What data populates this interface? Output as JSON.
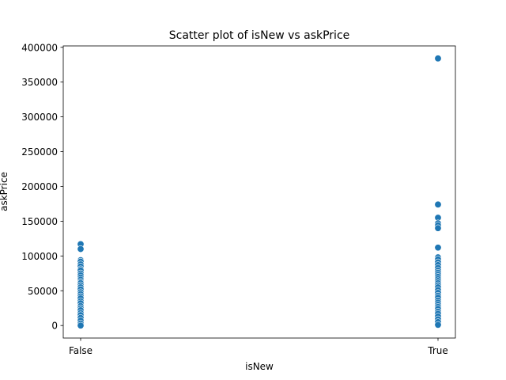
{
  "chart_data": {
    "type": "scatter",
    "title": "Scatter plot of isNew vs askPrice",
    "xlabel": "isNew",
    "ylabel": "askPrice",
    "categories": [
      "False",
      "True"
    ],
    "ylim": [
      -18000,
      402000
    ],
    "yticks": [
      0,
      50000,
      100000,
      150000,
      200000,
      250000,
      300000,
      350000,
      400000
    ],
    "grid": false,
    "legend": "none",
    "marker_color": "#1f77b4",
    "points": [
      {
        "x": "False",
        "y": 117000
      },
      {
        "x": "False",
        "y": 110000
      },
      {
        "x": "False",
        "y": 94000
      },
      {
        "x": "False",
        "y": 92000
      },
      {
        "x": "False",
        "y": 88000
      },
      {
        "x": "False",
        "y": 85000
      },
      {
        "x": "False",
        "y": 81000
      },
      {
        "x": "False",
        "y": 79000
      },
      {
        "x": "False",
        "y": 75000
      },
      {
        "x": "False",
        "y": 72000
      },
      {
        "x": "False",
        "y": 69000
      },
      {
        "x": "False",
        "y": 66000
      },
      {
        "x": "False",
        "y": 63000
      },
      {
        "x": "False",
        "y": 61000
      },
      {
        "x": "False",
        "y": 58000
      },
      {
        "x": "False",
        "y": 55000
      },
      {
        "x": "False",
        "y": 52000
      },
      {
        "x": "False",
        "y": 48000
      },
      {
        "x": "False",
        "y": 45000
      },
      {
        "x": "False",
        "y": 42000
      },
      {
        "x": "False",
        "y": 39000
      },
      {
        "x": "False",
        "y": 35000
      },
      {
        "x": "False",
        "y": 32000
      },
      {
        "x": "False",
        "y": 28000
      },
      {
        "x": "False",
        "y": 25000
      },
      {
        "x": "False",
        "y": 22000
      },
      {
        "x": "False",
        "y": 18000
      },
      {
        "x": "False",
        "y": 15000
      },
      {
        "x": "False",
        "y": 11000
      },
      {
        "x": "False",
        "y": 7000
      },
      {
        "x": "False",
        "y": 3000
      },
      {
        "x": "False",
        "y": 0
      },
      {
        "x": "True",
        "y": 384000
      },
      {
        "x": "True",
        "y": 174000
      },
      {
        "x": "True",
        "y": 155000
      },
      {
        "x": "True",
        "y": 147000
      },
      {
        "x": "True",
        "y": 144000
      },
      {
        "x": "True",
        "y": 140000
      },
      {
        "x": "True",
        "y": 112000
      },
      {
        "x": "True",
        "y": 98000
      },
      {
        "x": "True",
        "y": 95000
      },
      {
        "x": "True",
        "y": 91000
      },
      {
        "x": "True",
        "y": 87000
      },
      {
        "x": "True",
        "y": 83000
      },
      {
        "x": "True",
        "y": 79000
      },
      {
        "x": "True",
        "y": 76000
      },
      {
        "x": "True",
        "y": 73000
      },
      {
        "x": "True",
        "y": 70000
      },
      {
        "x": "True",
        "y": 67000
      },
      {
        "x": "True",
        "y": 64000
      },
      {
        "x": "True",
        "y": 61000
      },
      {
        "x": "True",
        "y": 58000
      },
      {
        "x": "True",
        "y": 55000
      },
      {
        "x": "True",
        "y": 51000
      },
      {
        "x": "True",
        "y": 47000
      },
      {
        "x": "True",
        "y": 43000
      },
      {
        "x": "True",
        "y": 40000
      },
      {
        "x": "True",
        "y": 36000
      },
      {
        "x": "True",
        "y": 33000
      },
      {
        "x": "True",
        "y": 30000
      },
      {
        "x": "True",
        "y": 27000
      },
      {
        "x": "True",
        "y": 24000
      },
      {
        "x": "True",
        "y": 20000
      },
      {
        "x": "True",
        "y": 17000
      },
      {
        "x": "True",
        "y": 13000
      },
      {
        "x": "True",
        "y": 9000
      },
      {
        "x": "True",
        "y": 5000
      },
      {
        "x": "True",
        "y": 1000
      }
    ]
  }
}
